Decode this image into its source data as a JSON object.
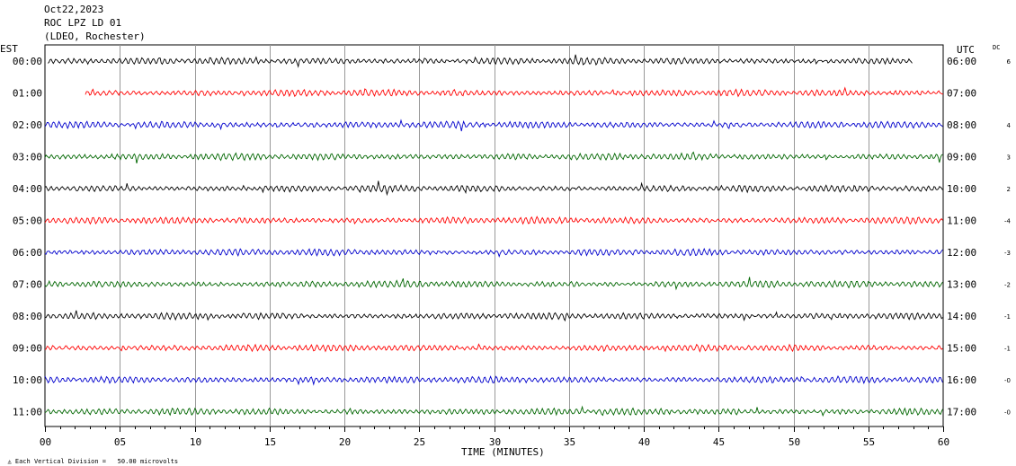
{
  "header": {
    "date": "Oct22,2023",
    "station": "ROC LPZ LD 01",
    "network": "(LDEO, Rochester)"
  },
  "colors": {
    "trace_cycle": [
      "#000000",
      "#ff0000",
      "#0000cc",
      "#006600"
    ]
  },
  "chart_data": {
    "type": "line",
    "subtype": "helicorder",
    "left_axis_label": "EST",
    "right_axis_label": "UTC",
    "dc_label": "DC",
    "xlabel": "TIME (MINUTES)",
    "xlim": [
      0,
      60
    ],
    "xticks": [
      "00",
      "05",
      "10",
      "15",
      "20",
      "25",
      "30",
      "35",
      "40",
      "45",
      "50",
      "55",
      "60"
    ],
    "scale_note": "Each Vertical Division =   50.00 microvolts",
    "rows": [
      {
        "est": "00:00",
        "utc": "06:00",
        "dc": "6",
        "start_min": 0.2,
        "end_min": 58.0
      },
      {
        "est": "01:00",
        "utc": "07:00",
        "dc": "",
        "start_min": 2.7,
        "end_min": 60
      },
      {
        "est": "02:00",
        "utc": "08:00",
        "dc": "4",
        "start_min": 0,
        "end_min": 60
      },
      {
        "est": "03:00",
        "utc": "09:00",
        "dc": "3",
        "start_min": 0,
        "end_min": 60
      },
      {
        "est": "04:00",
        "utc": "10:00",
        "dc": "2",
        "start_min": 0,
        "end_min": 60
      },
      {
        "est": "05:00",
        "utc": "11:00",
        "dc": "-4",
        "start_min": 0,
        "end_min": 60
      },
      {
        "est": "06:00",
        "utc": "12:00",
        "dc": "-3",
        "start_min": 0,
        "end_min": 60
      },
      {
        "est": "07:00",
        "utc": "13:00",
        "dc": "-2",
        "start_min": 0,
        "end_min": 60
      },
      {
        "est": "08:00",
        "utc": "14:00",
        "dc": "-1",
        "start_min": 0,
        "end_min": 60
      },
      {
        "est": "09:00",
        "utc": "15:00",
        "dc": "-1",
        "start_min": 0,
        "end_min": 60
      },
      {
        "est": "10:00",
        "utc": "16:00",
        "dc": "-0",
        "start_min": 0,
        "end_min": 60
      },
      {
        "est": "11:00",
        "utc": "17:00",
        "dc": "-0",
        "start_min": 0,
        "end_min": 60
      }
    ]
  }
}
